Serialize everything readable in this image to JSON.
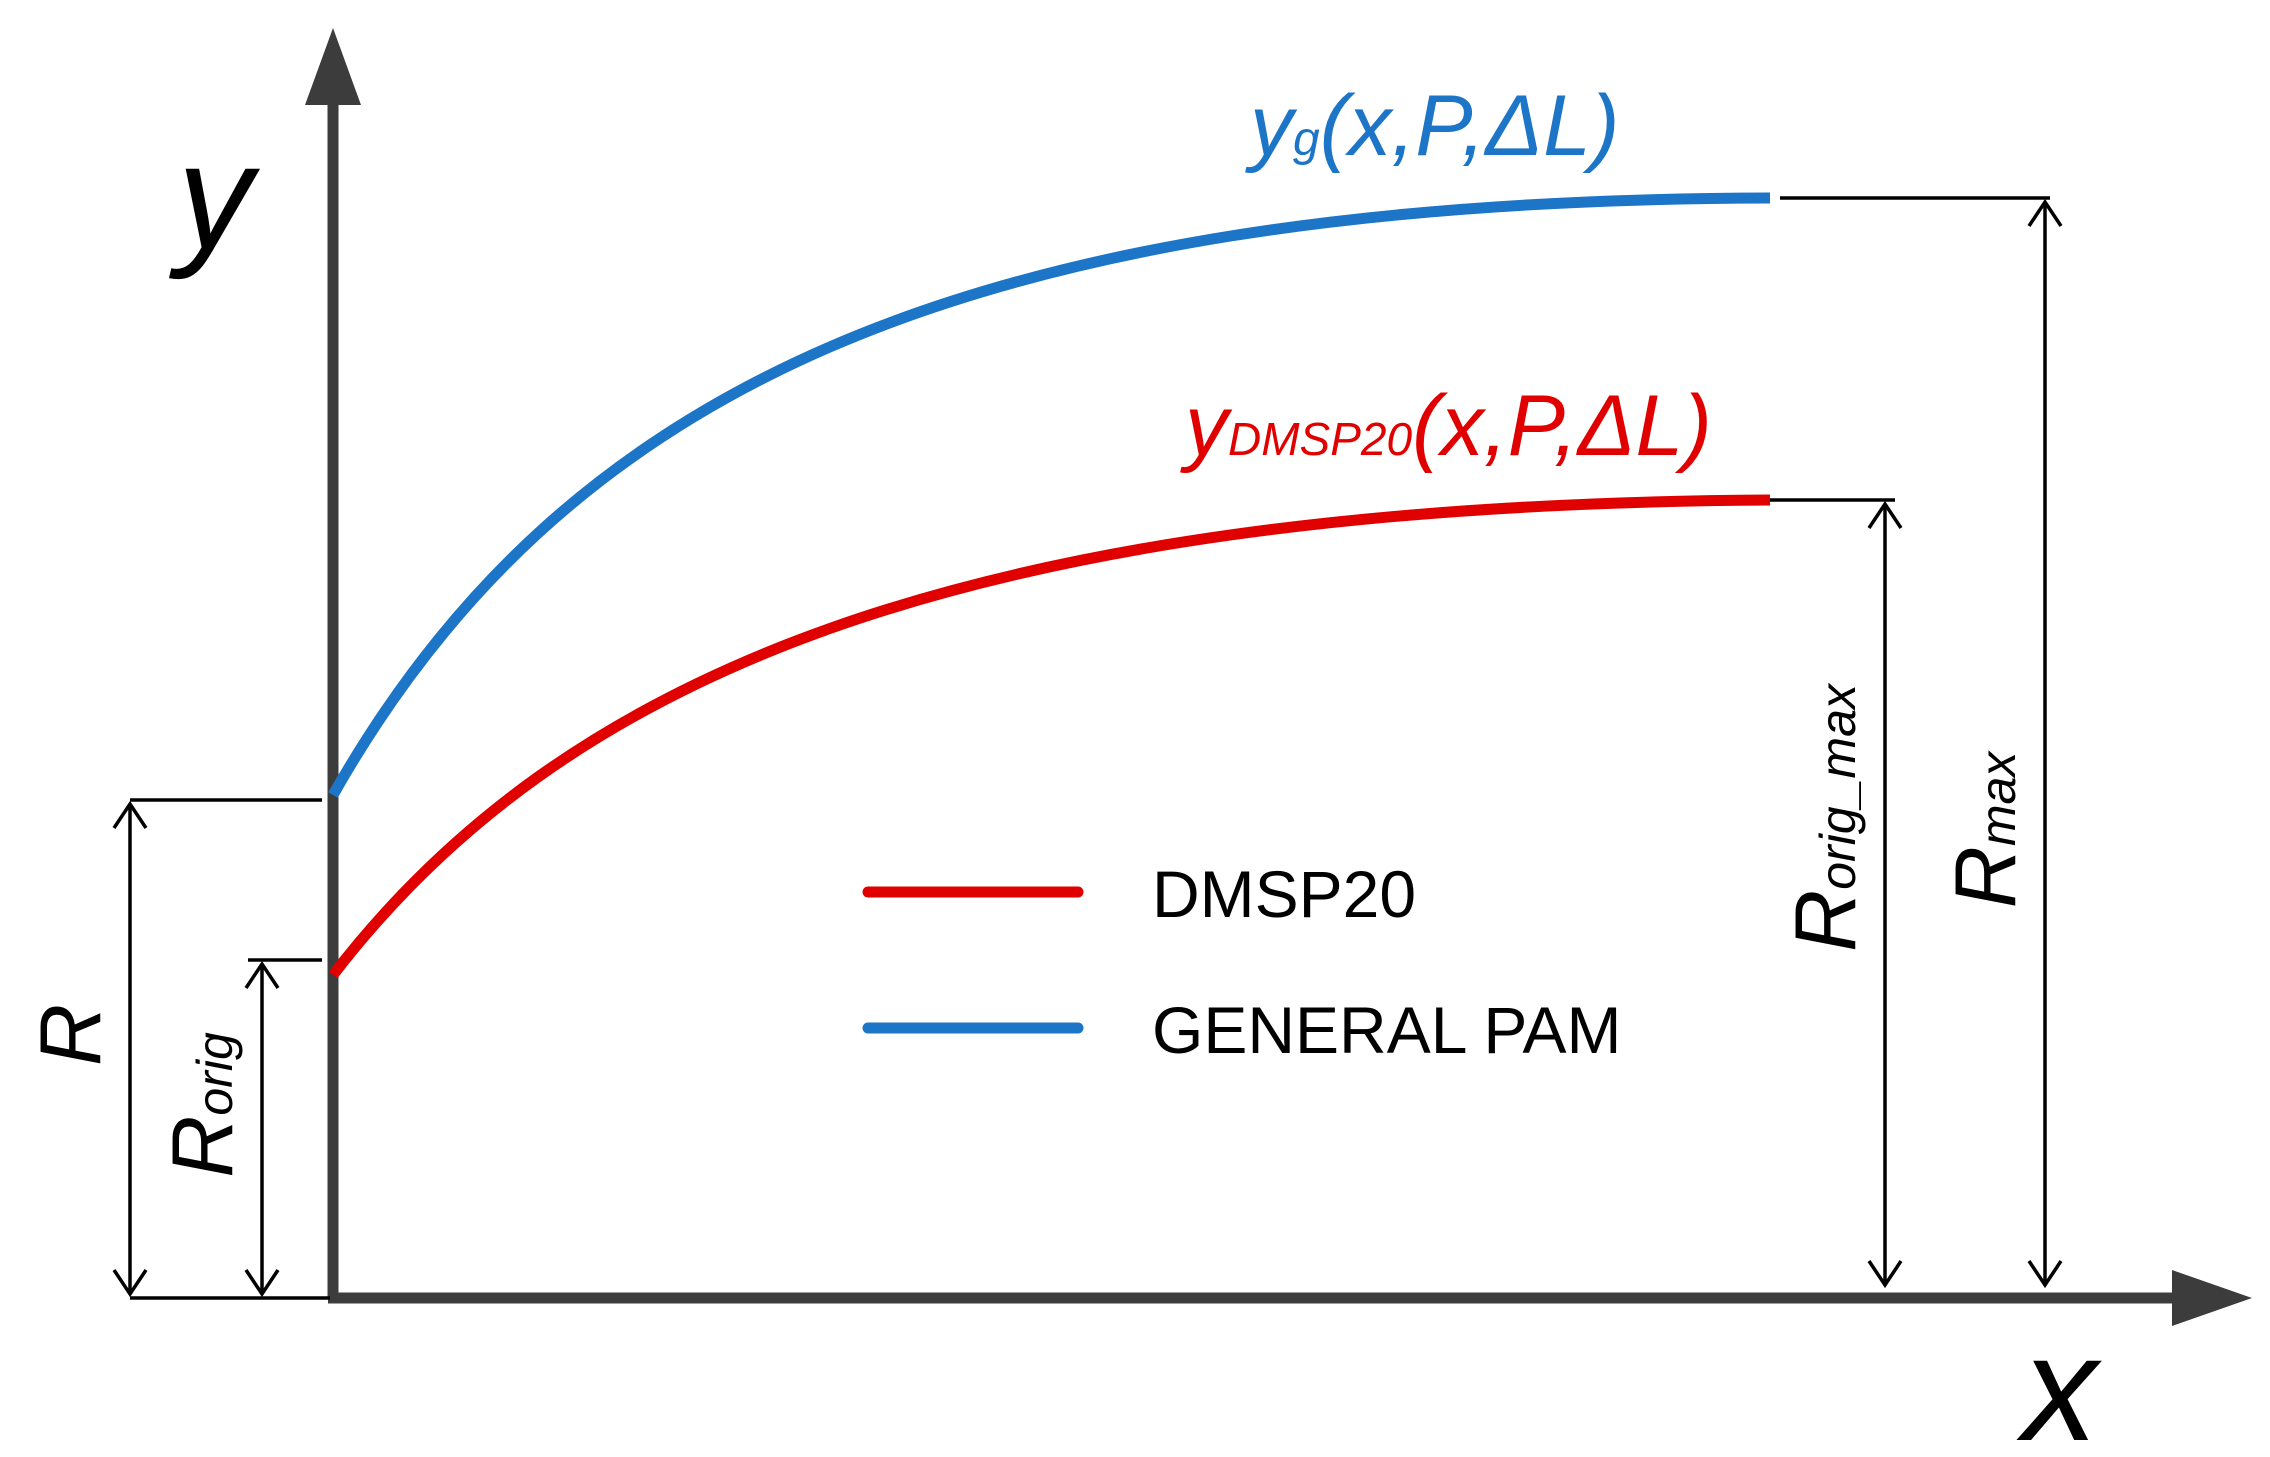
{
  "colors": {
    "axis": "#3c3c3c",
    "dimension": "#000000",
    "general": "#1c75c6",
    "dmsp": "#e00000",
    "text": "#000000"
  },
  "axes": {
    "x_label": "x",
    "y_label": "y"
  },
  "curves": {
    "general": {
      "fn": "y",
      "sub": "g",
      "args": "(x,P,ΔL)"
    },
    "dmsp": {
      "fn": "y",
      "sub": "DMSP20",
      "args": "(x,P,ΔL)"
    }
  },
  "dimensions": {
    "r": {
      "main": "R",
      "sub": ""
    },
    "r_orig": {
      "main": "R",
      "sub": "orig"
    },
    "r_orig_max": {
      "main": "R",
      "sub": "orig_max"
    },
    "r_max": {
      "main": "R",
      "sub": "max"
    }
  },
  "legend": {
    "items": [
      {
        "label": "DMSP20",
        "color": "#e00000"
      },
      {
        "label": "GENERAL PAM",
        "color": "#1c75c6"
      }
    ]
  }
}
